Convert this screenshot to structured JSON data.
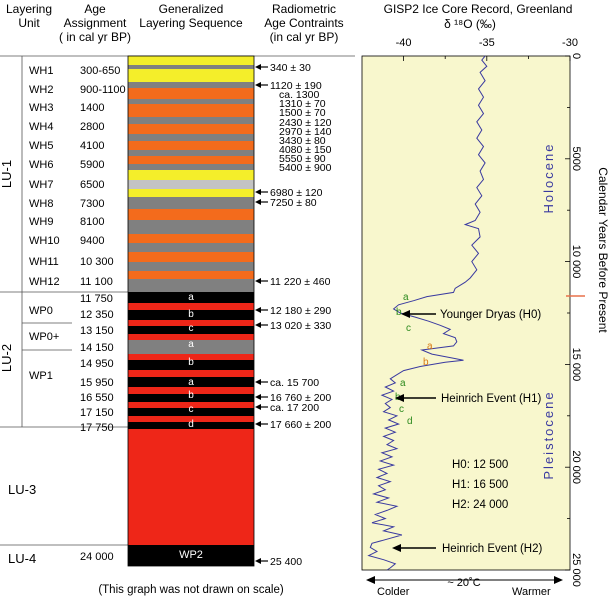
{
  "headers": {
    "layering_unit": [
      "Layering",
      "Unit"
    ],
    "age_assignment": [
      "Age",
      "Assignment",
      "( in cal yr BP)"
    ],
    "generalized": [
      "Generalized",
      "Layering Sequence"
    ],
    "radiometric": [
      "Radiometric",
      "Age Contraints",
      "(in cal yr BP)"
    ]
  },
  "note": "(This graph was not drawn on scale)",
  "lu_units": [
    "LU-1",
    "LU-2",
    "LU-3",
    "LU-4"
  ],
  "subunits": [
    {
      "label": "WH1",
      "age": "300-650"
    },
    {
      "label": "WH2",
      "age": "900-1100"
    },
    {
      "label": "WH3",
      "age": "1400"
    },
    {
      "label": "WH4",
      "age": "2800"
    },
    {
      "label": "WH5",
      "age": "4100"
    },
    {
      "label": "WH6",
      "age": "5900"
    },
    {
      "label": "WH7",
      "age": "6500"
    },
    {
      "label": "WH8",
      "age": "7300"
    },
    {
      "label": "WH9",
      "age": "8100"
    },
    {
      "label": "WH10",
      "age": "9400"
    },
    {
      "label": "WH11",
      "age": "10 300"
    },
    {
      "label": "WH12",
      "age": "11 100"
    }
  ],
  "pleistocene_ages": [
    "11 750",
    "12 350",
    "13 150",
    "14 150",
    "14 950",
    "15 950",
    "16 550",
    "17 150",
    "17 750",
    "24 000"
  ],
  "wp_labels": [
    "WP0",
    "WP0+",
    "WP1"
  ],
  "column_letters": [
    "a",
    "b",
    "c",
    "a",
    "b",
    "a",
    "b",
    "c",
    "d"
  ],
  "wp2_label": "WP2",
  "radiometric": [
    "340 ± 30",
    "1120 ± 190",
    "ca. 1300",
    "1310 ± 70",
    "1500 ± 70",
    "2430 ± 120",
    "2970 ± 140",
    "3430 ± 80",
    "4080 ± 150",
    "5550 ± 90",
    "5400 ± 900",
    "6980 ± 120",
    "7250 ± 80",
    "11 220 ± 460",
    "12 180 ± 290",
    "13 020 ± 330",
    "ca. 15 700",
    "16 760 ± 200",
    "ca. 17 200",
    "17 660 ± 200",
    "25 400"
  ],
  "colors": {
    "yellow": "#f4ee2a",
    "orange": "#f36b1c",
    "gray": "#808080",
    "lightgray": "#c3c3c3",
    "red": "#ee2618",
    "black": "#000000",
    "panel": "#f8f7cd",
    "curve": "#3a3aa0",
    "marker": "#e8704a",
    "era_text": "#3a3aa0",
    "letter_green": "#2d8a1e",
    "letter_orange": "#d97a14"
  },
  "ice": {
    "title": "GISP2 Ice Core Record, Greenland",
    "delta_label": "δ ¹⁸O  (‰)",
    "x_ticks": [
      "-40",
      "-35",
      "-30"
    ],
    "x_range": [
      -42.5,
      -30
    ],
    "y_ticks": [
      "0",
      "5000",
      "10 000",
      "15 000",
      "20 000",
      "25 000"
    ],
    "y_range": [
      0,
      25000
    ],
    "y_label": "Calendar Years Before Present",
    "holocene": "Holocene",
    "pleistocene": "Pleistocene",
    "events": [
      "Younger Dryas (H0)",
      "Heinrich Event (H1)",
      "Heinrich Event (H2)"
    ],
    "h_legend": [
      "H0:  12 500",
      "H1:  16 500",
      "H2:  24 000"
    ],
    "bottom": {
      "colder": "Colder",
      "temp": "~ 20˚C",
      "warmer": "Warmer"
    },
    "curve_letters": [
      "a",
      "b",
      "c",
      "a",
      "b",
      "a",
      "b",
      "c",
      "d"
    ],
    "curve": [
      [
        0,
        -35.1
      ],
      [
        200,
        -35.3
      ],
      [
        500,
        -35.0
      ],
      [
        800,
        -35.4
      ],
      [
        1200,
        -35.1
      ],
      [
        1600,
        -35.5
      ],
      [
        2000,
        -35.2
      ],
      [
        2400,
        -35.5
      ],
      [
        2800,
        -35.2
      ],
      [
        3200,
        -35.6
      ],
      [
        3600,
        -35.3
      ],
      [
        4000,
        -35.6
      ],
      [
        4400,
        -35.2
      ],
      [
        4800,
        -35.5
      ],
      [
        5200,
        -35.1
      ],
      [
        5600,
        -35.4
      ],
      [
        6000,
        -35.2
      ],
      [
        6400,
        -35.6
      ],
      [
        6800,
        -35.3
      ],
      [
        7200,
        -35.7
      ],
      [
        7600,
        -35.4
      ],
      [
        8000,
        -35.7
      ],
      [
        8200,
        -36.3
      ],
      [
        8400,
        -35.5
      ],
      [
        8800,
        -35.4
      ],
      [
        9200,
        -35.9
      ],
      [
        9600,
        -35.5
      ],
      [
        10000,
        -35.9
      ],
      [
        10400,
        -35.6
      ],
      [
        10800,
        -36.0
      ],
      [
        11000,
        -36.3
      ],
      [
        11300,
        -36.9
      ],
      [
        11500,
        -37.0
      ],
      [
        11700,
        -38.6
      ],
      [
        11900,
        -39.4
      ],
      [
        12100,
        -40.3
      ],
      [
        12300,
        -40.6
      ],
      [
        12500,
        -40.2
      ],
      [
        12700,
        -39.3
      ],
      [
        12900,
        -38.5
      ],
      [
        13100,
        -37.8
      ],
      [
        13300,
        -37.2
      ],
      [
        13500,
        -37.6
      ],
      [
        13700,
        -36.9
      ],
      [
        13900,
        -36.8
      ],
      [
        14100,
        -37.0
      ],
      [
        14300,
        -38.9
      ],
      [
        14500,
        -38.3
      ],
      [
        14700,
        -37.0
      ],
      [
        14800,
        -36.4
      ],
      [
        14900,
        -37.5
      ],
      [
        15100,
        -39.0
      ],
      [
        15300,
        -40.0
      ],
      [
        15500,
        -40.4
      ],
      [
        15700,
        -40.8
      ],
      [
        15900,
        -40.5
      ],
      [
        16100,
        -41.1
      ],
      [
        16300,
        -40.6
      ],
      [
        16500,
        -41.3
      ],
      [
        16700,
        -40.7
      ],
      [
        16900,
        -41.1
      ],
      [
        17100,
        -40.8
      ],
      [
        17300,
        -41.2
      ],
      [
        17500,
        -40.4
      ],
      [
        17700,
        -40.9
      ],
      [
        17900,
        -40.3
      ],
      [
        18100,
        -41.1
      ],
      [
        18300,
        -40.5
      ],
      [
        18500,
        -41.2
      ],
      [
        18700,
        -40.6
      ],
      [
        18900,
        -41.0
      ],
      [
        19100,
        -40.4
      ],
      [
        19300,
        -41.3
      ],
      [
        19500,
        -40.7
      ],
      [
        19700,
        -41.4
      ],
      [
        19900,
        -40.6
      ],
      [
        20100,
        -41.5
      ],
      [
        20300,
        -41.0
      ],
      [
        20500,
        -41.6
      ],
      [
        20700,
        -40.8
      ],
      [
        20900,
        -41.5
      ],
      [
        21100,
        -41.1
      ],
      [
        21300,
        -41.8
      ],
      [
        21500,
        -40.9
      ],
      [
        21700,
        -41.6
      ],
      [
        21900,
        -40.4
      ],
      [
        22100,
        -41.0
      ],
      [
        22300,
        -41.7
      ],
      [
        22500,
        -41.1
      ],
      [
        22700,
        -41.9
      ],
      [
        22900,
        -40.6
      ],
      [
        23100,
        -41.2
      ],
      [
        23300,
        -40.1
      ],
      [
        23500,
        -41.0
      ],
      [
        23700,
        -41.9
      ],
      [
        23900,
        -42.0
      ],
      [
        24100,
        -41.6
      ],
      [
        24300,
        -42.1
      ],
      [
        24500,
        -41.2
      ],
      [
        24700,
        -40.5
      ],
      [
        24900,
        -40.8
      ],
      [
        25000,
        -41.0
      ]
    ]
  }
}
